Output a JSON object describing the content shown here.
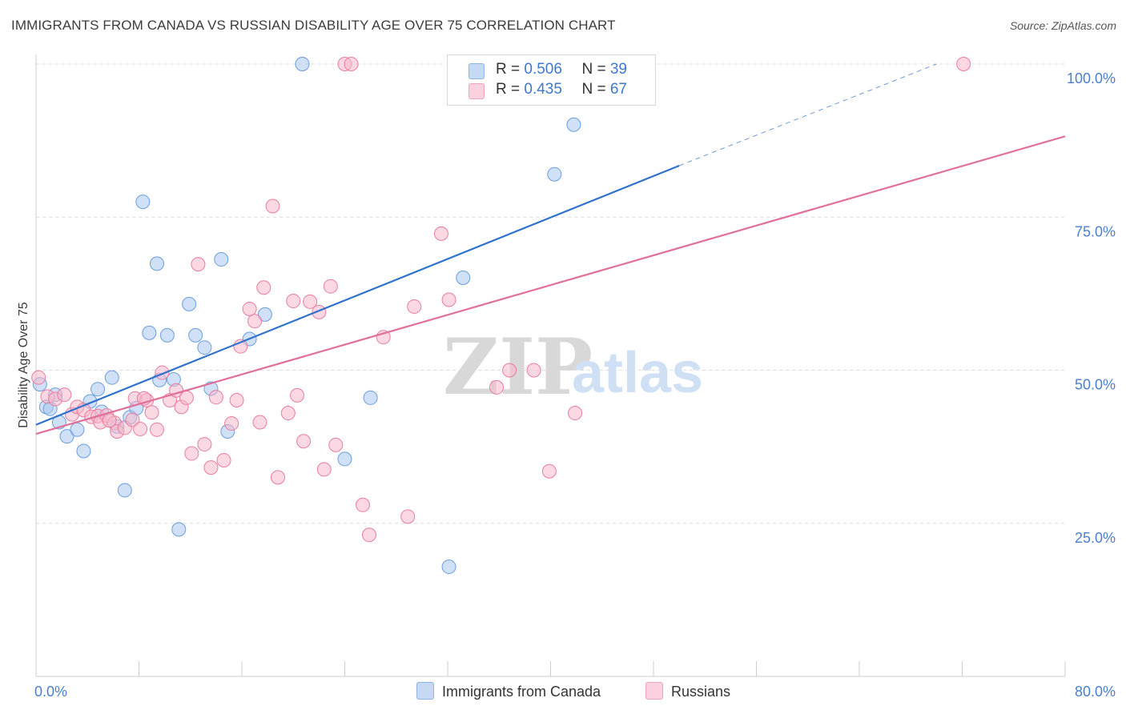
{
  "title": "IMMIGRANTS FROM CANADA VS RUSSIAN DISABILITY AGE OVER 75 CORRELATION CHART",
  "source": "Source: ZipAtlas.com",
  "watermark": {
    "zip": "ZIP",
    "atlas": "atlas"
  },
  "legend_stats": [
    {
      "r_label": "R = ",
      "r_value": "0.506",
      "n_label": "N = ",
      "n_value": "39",
      "color": "#a9c7ef"
    },
    {
      "r_label": "R = ",
      "r_value": "0.435",
      "n_label": "N = ",
      "n_value": "67",
      "color": "#f7b8cb"
    }
  ],
  "bottom_legend": [
    {
      "label": "Immigrants from Canada",
      "color": "#a9c7ef"
    },
    {
      "label": "Russians",
      "color": "#f7b8cb"
    }
  ],
  "chart_data": {
    "type": "scatter",
    "title": "IMMIGRANTS FROM CANADA VS RUSSIAN DISABILITY AGE OVER 75 CORRELATION CHART",
    "xlabel": "",
    "ylabel": "Disability Age Over 75",
    "xlim": [
      0,
      80
    ],
    "ylim": [
      0,
      100
    ],
    "x_tick_labels": [
      "0.0%",
      "80.0%"
    ],
    "y_tick_values": [
      25,
      50,
      75,
      100
    ],
    "y_tick_labels": [
      "25.0%",
      "50.0%",
      "75.0%",
      "100.0%"
    ],
    "grid": true,
    "legend_position": "top-center",
    "series": [
      {
        "name": "Immigrants from Canada",
        "color": "#6b9ede",
        "fill": "#a9c7ef",
        "trend": {
          "x": [
            0,
            50
          ],
          "y": [
            41.1,
            83.4
          ],
          "dashed_to": [
            70,
            100
          ],
          "color": "#2f72cc"
        },
        "points": [
          [
            0.3,
            47.7
          ],
          [
            0.8,
            44.0
          ],
          [
            1.1,
            43.7
          ],
          [
            1.5,
            46.0
          ],
          [
            1.8,
            41.5
          ],
          [
            2.4,
            39.2
          ],
          [
            3.2,
            40.3
          ],
          [
            3.7,
            36.8
          ],
          [
            4.2,
            44.9
          ],
          [
            4.8,
            46.9
          ],
          [
            5.1,
            43.2
          ],
          [
            5.9,
            48.8
          ],
          [
            6.3,
            40.8
          ],
          [
            6.9,
            30.4
          ],
          [
            7.3,
            42.3
          ],
          [
            7.8,
            43.8
          ],
          [
            8.3,
            77.5
          ],
          [
            8.8,
            56.1
          ],
          [
            9.4,
            67.4
          ],
          [
            9.6,
            48.4
          ],
          [
            10.2,
            55.7
          ],
          [
            10.7,
            48.5
          ],
          [
            11.1,
            24.0
          ],
          [
            11.9,
            60.8
          ],
          [
            12.4,
            55.7
          ],
          [
            13.1,
            53.7
          ],
          [
            13.6,
            47.0
          ],
          [
            14.4,
            68.1
          ],
          [
            14.9,
            40.0
          ],
          [
            16.6,
            55.1
          ],
          [
            17.8,
            59.1
          ],
          [
            20.7,
            100.0
          ],
          [
            24.0,
            35.5
          ],
          [
            26.0,
            45.5
          ],
          [
            32.1,
            17.9
          ],
          [
            33.2,
            65.1
          ],
          [
            34.0,
            100.0
          ],
          [
            40.3,
            82.0
          ],
          [
            41.8,
            90.1
          ]
        ]
      },
      {
        "name": "Russians",
        "color": "#e87da0",
        "fill": "#f7b8cb",
        "trend": {
          "x": [
            0,
            80
          ],
          "y": [
            39.6,
            88.2
          ],
          "color": "#e0709a"
        },
        "points": [
          [
            0.2,
            48.8
          ],
          [
            0.9,
            45.7
          ],
          [
            1.5,
            45.3
          ],
          [
            2.2,
            46.0
          ],
          [
            2.8,
            42.8
          ],
          [
            3.2,
            44.0
          ],
          [
            3.7,
            43.5
          ],
          [
            4.3,
            42.4
          ],
          [
            4.8,
            42.5
          ],
          [
            5.0,
            41.5
          ],
          [
            5.5,
            42.6
          ],
          [
            6.1,
            41.4
          ],
          [
            6.3,
            40.0
          ],
          [
            6.9,
            40.6
          ],
          [
            7.5,
            41.9
          ],
          [
            7.7,
            45.4
          ],
          [
            8.1,
            40.4
          ],
          [
            8.6,
            45.1
          ],
          [
            9.0,
            43.1
          ],
          [
            9.4,
            40.3
          ],
          [
            9.8,
            49.6
          ],
          [
            10.4,
            45.1
          ],
          [
            10.9,
            46.7
          ],
          [
            11.3,
            44.0
          ],
          [
            11.7,
            45.5
          ],
          [
            12.1,
            36.4
          ],
          [
            12.6,
            67.3
          ],
          [
            13.1,
            37.9
          ],
          [
            13.6,
            34.1
          ],
          [
            14.0,
            45.6
          ],
          [
            14.6,
            35.3
          ],
          [
            15.2,
            41.3
          ],
          [
            15.6,
            45.1
          ],
          [
            15.9,
            53.9
          ],
          [
            16.6,
            60.0
          ],
          [
            17.0,
            58.0
          ],
          [
            17.4,
            41.5
          ],
          [
            17.7,
            63.5
          ],
          [
            18.4,
            76.8
          ],
          [
            18.8,
            32.5
          ],
          [
            19.6,
            43.0
          ],
          [
            20.0,
            61.3
          ],
          [
            20.3,
            45.9
          ],
          [
            20.8,
            38.4
          ],
          [
            21.3,
            61.2
          ],
          [
            22.0,
            59.5
          ],
          [
            22.4,
            33.8
          ],
          [
            22.9,
            63.7
          ],
          [
            23.3,
            37.8
          ],
          [
            24.0,
            100.0
          ],
          [
            24.5,
            100.0
          ],
          [
            25.4,
            28.0
          ],
          [
            25.9,
            23.1
          ],
          [
            27.0,
            55.4
          ],
          [
            28.9,
            26.1
          ],
          [
            29.4,
            60.4
          ],
          [
            31.5,
            72.3
          ],
          [
            32.1,
            61.5
          ],
          [
            35.8,
            47.2
          ],
          [
            36.8,
            50.0
          ],
          [
            38.7,
            50.0
          ],
          [
            39.9,
            33.5
          ],
          [
            41.9,
            43.0
          ],
          [
            72.1,
            100.0
          ],
          [
            34.6,
            100.0
          ],
          [
            5.7,
            41.8
          ],
          [
            8.4,
            45.4
          ]
        ]
      }
    ]
  }
}
